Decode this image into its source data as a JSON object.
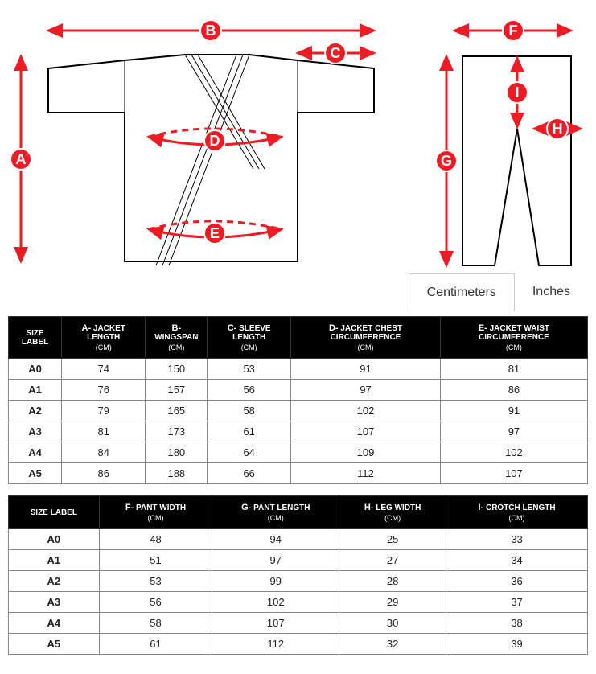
{
  "diagram": {
    "labels": [
      "A",
      "B",
      "C",
      "D",
      "E",
      "F",
      "G",
      "H",
      "I"
    ],
    "accent_color": "#ed1c24"
  },
  "tabs": {
    "centimeters": "Centimeters",
    "inches": "Inches",
    "active": "Centimeters"
  },
  "table1": {
    "headers": {
      "size": "SIZE LABEL",
      "A": {
        "prefix": "A-",
        "label": "JACKET LENGTH",
        "unit": "(CM)"
      },
      "B": {
        "prefix": "B-",
        "label": "WINGSPAN",
        "unit": "(CM)"
      },
      "C": {
        "prefix": "C-",
        "label": "SLEEVE LENGTH",
        "unit": "(CM)"
      },
      "D": {
        "prefix": "D-",
        "label": "JACKET CHEST CIRCUMFERENCE",
        "unit": "(CM)"
      },
      "E": {
        "prefix": "E-",
        "label": "JACKET WAIST CIRCUMFERENCE",
        "unit": "(CM)"
      }
    },
    "rows": [
      {
        "size": "A0",
        "A": "74",
        "B": "150",
        "C": "53",
        "D": "91",
        "E": "81"
      },
      {
        "size": "A1",
        "A": "76",
        "B": "157",
        "C": "56",
        "D": "97",
        "E": "86"
      },
      {
        "size": "A2",
        "A": "79",
        "B": "165",
        "C": "58",
        "D": "102",
        "E": "91"
      },
      {
        "size": "A3",
        "A": "81",
        "B": "173",
        "C": "61",
        "D": "107",
        "E": "97"
      },
      {
        "size": "A4",
        "A": "84",
        "B": "180",
        "C": "64",
        "D": "109",
        "E": "102"
      },
      {
        "size": "A5",
        "A": "86",
        "B": "188",
        "C": "66",
        "D": "112",
        "E": "107"
      }
    ]
  },
  "table2": {
    "headers": {
      "size": "SIZE LABEL",
      "F": {
        "prefix": "F-",
        "label": "PANT WIDTH",
        "unit": "(CM)"
      },
      "G": {
        "prefix": "G-",
        "label": "PANT LENGTH",
        "unit": "(CM)"
      },
      "H": {
        "prefix": "H-",
        "label": "LEG WIDTH",
        "unit": "(CM)"
      },
      "I": {
        "prefix": "I-",
        "label": "CROTCH LENGTH",
        "unit": "(CM)"
      }
    },
    "rows": [
      {
        "size": "A0",
        "F": "48",
        "G": "94",
        "H": "25",
        "I": "33"
      },
      {
        "size": "A1",
        "F": "51",
        "G": "97",
        "H": "27",
        "I": "34"
      },
      {
        "size": "A2",
        "F": "53",
        "G": "99",
        "H": "28",
        "I": "36"
      },
      {
        "size": "A3",
        "F": "56",
        "G": "102",
        "H": "29",
        "I": "37"
      },
      {
        "size": "A4",
        "F": "58",
        "G": "107",
        "H": "30",
        "I": "38"
      },
      {
        "size": "A5",
        "F": "61",
        "G": "112",
        "H": "32",
        "I": "39"
      }
    ]
  }
}
